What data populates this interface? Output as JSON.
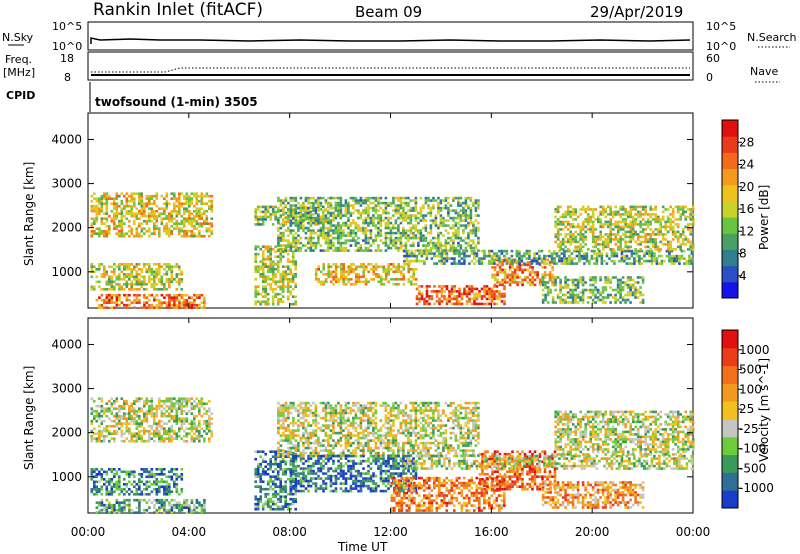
{
  "header": {
    "station": "Rankin Inlet (fitACF)",
    "beam": "Beam 09",
    "date": "29/Apr/2019"
  },
  "panels": {
    "nsky": {
      "label": "N.Sky",
      "y_ticks": [
        "10^5",
        "10^0"
      ],
      "right_ticks": [
        "10^5",
        "10^0"
      ],
      "right_label": "N.Search"
    },
    "freq": {
      "label_line1": "Freq.",
      "label_line2": "[MHz]",
      "y_ticks": [
        "18",
        "8"
      ],
      "right_ticks": [
        "60",
        "0"
      ],
      "right_label": "Nave"
    },
    "cpid": {
      "label": "CPID",
      "text": "twofsound (1-min) 3505"
    }
  },
  "chart_data": [
    {
      "type": "heatmap",
      "title": "",
      "xlabel": "Time UT",
      "ylabel": "Slant Range [km]",
      "x_ticks": [
        "00:00",
        "04:00",
        "08:00",
        "12:00",
        "16:00",
        "20:00",
        "00:00"
      ],
      "xlim_hours": [
        0,
        24
      ],
      "y_ticks": [
        1000,
        2000,
        3000,
        4000
      ],
      "ylim": [
        180,
        4600
      ],
      "colorbar": {
        "label": "Power [dB]",
        "ticks": [
          "4",
          "8",
          "12",
          "16",
          "20",
          "24",
          "28"
        ],
        "colors": [
          "#1414e8",
          "#2a4ec4",
          "#2f7f8e",
          "#4aa060",
          "#69c442",
          "#c8d22a",
          "#f0c01c",
          "#f49a1e",
          "#f26a1c",
          "#e93a1a",
          "#e01010"
        ]
      },
      "regions": [
        {
          "t0": 0.1,
          "t1": 4.9,
          "r0": 1800,
          "r1": 2800,
          "level": 0.55
        },
        {
          "t0": 0.1,
          "t1": 3.7,
          "r0": 600,
          "r1": 1200,
          "level": 0.5
        },
        {
          "t0": 0.3,
          "t1": 4.6,
          "r0": 180,
          "r1": 500,
          "level": 0.75
        },
        {
          "t0": 6.6,
          "t1": 8.2,
          "r0": 250,
          "r1": 1600,
          "level": 0.5
        },
        {
          "t0": 6.6,
          "t1": 9.5,
          "r0": 2100,
          "r1": 2500,
          "level": 0.45
        },
        {
          "t0": 7.5,
          "t1": 15.5,
          "r0": 1500,
          "r1": 2700,
          "level": 0.4
        },
        {
          "t0": 9.0,
          "t1": 13.0,
          "r0": 700,
          "r1": 1200,
          "level": 0.6
        },
        {
          "t0": 13.0,
          "t1": 16.5,
          "r0": 300,
          "r1": 700,
          "level": 0.8
        },
        {
          "t0": 16.0,
          "t1": 18.5,
          "r0": 700,
          "r1": 1300,
          "level": 0.7
        },
        {
          "t0": 12.5,
          "t1": 24.0,
          "r0": 1200,
          "r1": 1500,
          "level": 0.35
        },
        {
          "t0": 18.5,
          "t1": 24.0,
          "r0": 1500,
          "r1": 2500,
          "level": 0.5
        },
        {
          "t0": 18.0,
          "t1": 22.0,
          "r0": 300,
          "r1": 900,
          "level": 0.4
        }
      ]
    },
    {
      "type": "heatmap",
      "title": "",
      "xlabel": "Time UT",
      "ylabel": "Slant Range [km]",
      "x_ticks": [
        "00:00",
        "04:00",
        "08:00",
        "12:00",
        "16:00",
        "20:00",
        "00:00"
      ],
      "xlim_hours": [
        0,
        24
      ],
      "y_ticks": [
        1000,
        2000,
        3000,
        4000
      ],
      "ylim": [
        180,
        4600
      ],
      "colorbar": {
        "label": "Velocity [m s^-1]",
        "ticks": [
          "1000",
          "500",
          "100",
          "25",
          "-25",
          "-100",
          "-500",
          "-1000"
        ],
        "colors": [
          "#1a3cc8",
          "#2f6f96",
          "#3a9a5a",
          "#6ccc3a",
          "#c6c6c0",
          "#f0c01c",
          "#f29a1e",
          "#f2701c",
          "#ec3c18",
          "#e21010"
        ]
      },
      "regions": [
        {
          "t0": 0.1,
          "t1": 4.9,
          "r0": 1800,
          "r1": 2800,
          "level": 0.45
        },
        {
          "t0": 0.1,
          "t1": 3.7,
          "r0": 600,
          "r1": 1200,
          "level": 0.2
        },
        {
          "t0": 0.3,
          "t1": 4.6,
          "r0": 180,
          "r1": 500,
          "level": 0.3
        },
        {
          "t0": 6.6,
          "t1": 8.2,
          "r0": 250,
          "r1": 1600,
          "level": 0.2
        },
        {
          "t0": 7.5,
          "t1": 15.5,
          "r0": 1500,
          "r1": 2700,
          "level": 0.45
        },
        {
          "t0": 8.0,
          "t1": 13.0,
          "r0": 700,
          "r1": 1500,
          "level": 0.15
        },
        {
          "t0": 12.0,
          "t1": 16.5,
          "r0": 250,
          "r1": 1000,
          "level": 0.7
        },
        {
          "t0": 15.5,
          "t1": 18.5,
          "r0": 700,
          "r1": 1600,
          "level": 0.8
        },
        {
          "t0": 12.5,
          "t1": 24.0,
          "r0": 1200,
          "r1": 1500,
          "level": 0.45
        },
        {
          "t0": 18.5,
          "t1": 24.0,
          "r0": 1500,
          "r1": 2500,
          "level": 0.45
        },
        {
          "t0": 18.0,
          "t1": 22.0,
          "r0": 300,
          "r1": 900,
          "level": 0.65
        }
      ]
    }
  ]
}
